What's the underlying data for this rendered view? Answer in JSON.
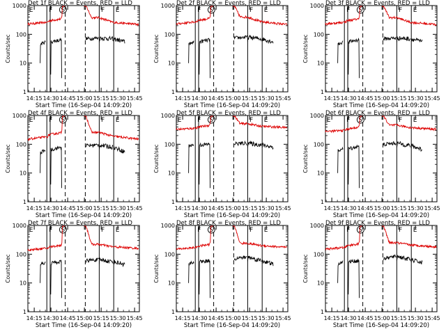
{
  "figure": {
    "x_start_label": "Start Time (16-Sep-04 14:09:20)",
    "ylabel": "Counts/sec",
    "x_ticks": [
      "14:15",
      "14:30",
      "14:45",
      "15:00",
      "15:15",
      "15:30",
      "15:45"
    ],
    "y_ticks": [
      "1",
      "10",
      "100",
      "1000"
    ],
    "legend_black": "BLACK = Events",
    "legend_red": "RED = LLD",
    "marker_labels": [
      "E",
      "F",
      "S",
      "F",
      "E"
    ],
    "colors": {
      "events": "#000000",
      "lld": "#dd0000",
      "axes": "#000000"
    }
  },
  "chart_data": [
    {
      "type": "line",
      "title": "Det 1f BLACK = Events, RED = LLD",
      "xlabel": "Start Time (16-Sep-04 14:09:20)",
      "ylabel": "Counts/sec",
      "xlim_minutes_from_start": [
        0,
        100
      ],
      "ylim": [
        1,
        1000
      ],
      "yscale": "log",
      "lld_levels": [
        230,
        260,
        300,
        1000,
        1000,
        380,
        260,
        220
      ],
      "events_levels": [
        45,
        55,
        65,
        70,
        75,
        70,
        55
      ]
    },
    {
      "type": "line",
      "title": "Det 2f BLACK = Events, RED = LLD",
      "xlabel": "Start Time (16-Sep-04 14:09:20)",
      "ylabel": "Counts/sec",
      "xlim_minutes_from_start": [
        0,
        100
      ],
      "ylim": [
        1,
        1000
      ],
      "yscale": "log",
      "lld_levels": [
        230,
        270,
        310,
        1000,
        1000,
        400,
        270,
        220
      ],
      "events_levels": [
        45,
        55,
        65,
        75,
        80,
        70,
        55
      ]
    },
    {
      "type": "line",
      "title": "Det 3f BLACK = Events, RED = LLD",
      "xlabel": "Start Time (16-Sep-04 14:09:20)",
      "ylabel": "Counts/sec",
      "xlim_minutes_from_start": [
        0,
        100
      ],
      "ylim": [
        1,
        1000
      ],
      "yscale": "log",
      "lld_levels": [
        230,
        260,
        300,
        1000,
        1000,
        380,
        260,
        220
      ],
      "events_levels": [
        45,
        55,
        65,
        70,
        75,
        70,
        55
      ]
    },
    {
      "type": "line",
      "title": "Det 4f BLACK = Events, RED = LLD",
      "xlabel": "Start Time (16-Sep-04 14:09:20)",
      "ylabel": "Counts/sec",
      "xlim_minutes_from_start": [
        0,
        100
      ],
      "ylim": [
        1,
        1000
      ],
      "yscale": "log",
      "lld_levels": [
        150,
        180,
        220,
        1000,
        1000,
        260,
        190,
        150
      ],
      "events_levels": [
        50,
        65,
        80,
        90,
        95,
        80,
        55
      ]
    },
    {
      "type": "line",
      "title": "Det 5f BLACK = Events, RED = LLD",
      "xlabel": "Start Time (16-Sep-04 14:09:20)",
      "ylabel": "Counts/sec",
      "xlim_minutes_from_start": [
        0,
        100
      ],
      "ylim": [
        1,
        1000
      ],
      "yscale": "log",
      "lld_levels": [
        330,
        360,
        400,
        1000,
        1000,
        520,
        420,
        380
      ],
      "events_levels": [
        90,
        95,
        100,
        105,
        110,
        95,
        80
      ]
    },
    {
      "type": "line",
      "title": "Det 6f BLACK = Events, RED = LLD",
      "xlabel": "Start Time (16-Sep-04 14:09:20)",
      "ylabel": "Counts/sec",
      "xlim_minutes_from_start": [
        0,
        100
      ],
      "ylim": [
        1,
        1000
      ],
      "yscale": "log",
      "lld_levels": [
        280,
        300,
        340,
        1000,
        1000,
        460,
        380,
        330
      ],
      "events_levels": [
        60,
        70,
        85,
        100,
        110,
        90,
        65
      ]
    },
    {
      "type": "line",
      "title": "Det 7f BLACK = Events, RED = LLD",
      "xlabel": "Start Time (16-Sep-04 14:09:20)",
      "ylabel": "Counts/sec",
      "xlim_minutes_from_start": [
        0,
        100
      ],
      "ylim": [
        1,
        1000
      ],
      "yscale": "log",
      "lld_levels": [
        140,
        160,
        180,
        1000,
        1000,
        220,
        180,
        160
      ],
      "events_levels": [
        45,
        50,
        55,
        60,
        65,
        55,
        45
      ]
    },
    {
      "type": "line",
      "title": "Det 8f BLACK = Events, RED = LLD",
      "xlabel": "Start Time (16-Sep-04 14:09:20)",
      "ylabel": "Counts/sec",
      "xlim_minutes_from_start": [
        0,
        100
      ],
      "ylim": [
        1,
        1000
      ],
      "yscale": "log",
      "lld_levels": [
        150,
        170,
        190,
        1000,
        1000,
        240,
        200,
        170
      ],
      "events_levels": [
        45,
        55,
        60,
        70,
        80,
        60,
        45
      ]
    },
    {
      "type": "line",
      "title": "Det 9f BLACK = Events, RED = LLD",
      "xlabel": "Start Time (16-Sep-04 14:09:20)",
      "ylabel": "Counts/sec",
      "xlim_minutes_from_start": [
        0,
        100
      ],
      "ylim": [
        1,
        1000
      ],
      "yscale": "log",
      "lld_levels": [
        150,
        170,
        200,
        1000,
        1000,
        250,
        210,
        180
      ],
      "events_levels": [
        45,
        55,
        60,
        70,
        85,
        65,
        50
      ]
    }
  ]
}
